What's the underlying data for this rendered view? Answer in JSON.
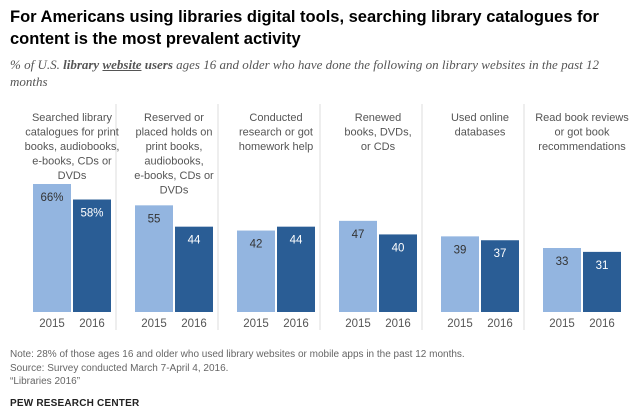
{
  "title": "For Americans using libraries digital tools, searching library catalogues for content is the most prevalent activity",
  "subtitle": {
    "pre": "% of U.S. ",
    "bold1": "library",
    "underlined": "website",
    "bold2": "users",
    "post": " ages 16 and older who have done the following on library websites in the past 12 months"
  },
  "colors": {
    "y2015": "#93b5e0",
    "y2016": "#2a5d95",
    "divider": "#dddddd"
  },
  "chart_data": {
    "type": "bar",
    "categories": [
      "Searched library catalogues for print books, audiobooks, e-books, CDs or DVDs",
      "Reserved or placed holds on print books, audiobooks, e-books, CDs or DVDs",
      "Conducted research or got homework help",
      "Renewed books, DVDs, or CDs",
      "Used online databases",
      "Read book reviews or got book recommendations"
    ],
    "category_lines": [
      [
        "Searched library",
        "catalogues for print",
        "books, audiobooks,",
        "e-books, CDs or",
        "DVDs"
      ],
      [
        "Reserved or",
        "placed holds on",
        "print books,",
        "audiobooks,",
        "e-books, CDs or",
        "DVDs"
      ],
      [
        "Conducted",
        "research or got",
        "homework help"
      ],
      [
        "Renewed",
        "books, DVDs,",
        "or CDs"
      ],
      [
        "Used online",
        "databases"
      ],
      [
        "Read book reviews",
        "or got book",
        "recommendations"
      ]
    ],
    "series": [
      {
        "name": "2015",
        "values": [
          66,
          55,
          42,
          47,
          39,
          33
        ]
      },
      {
        "name": "2016",
        "values": [
          58,
          44,
          44,
          40,
          37,
          31
        ]
      }
    ],
    "value_labels": [
      [
        "66%",
        "58%"
      ],
      [
        "55",
        "44"
      ],
      [
        "42",
        "44"
      ],
      [
        "47",
        "40"
      ],
      [
        "39",
        "37"
      ],
      [
        "33",
        "31"
      ]
    ],
    "ylim": [
      0,
      66
    ],
    "grid": false,
    "legend": "none"
  },
  "footer": {
    "note": "Note: 28% of those ages 16 and older who used library websites or mobile apps in the past 12 months.",
    "source": "Source: Survey conducted March 7-April 4, 2016.",
    "report": "“Libraries 2016”",
    "brand": "PEW RESEARCH CENTER"
  }
}
